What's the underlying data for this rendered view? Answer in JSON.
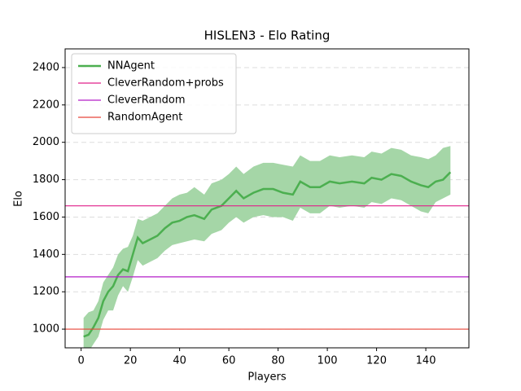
{
  "chart_data": {
    "type": "line",
    "title": "HISLEN3 - Elo Rating",
    "x_label": "Players",
    "y_label": "Elo",
    "xlim": [
      -6.5,
      157.5
    ],
    "ylim": [
      900,
      2500
    ],
    "xticks": [
      0,
      20,
      40,
      60,
      80,
      100,
      120,
      140
    ],
    "yticks": [
      1000,
      1200,
      1400,
      1600,
      1800,
      2000,
      2200,
      2400
    ],
    "grid": true,
    "legend": "upper left",
    "x": [
      1,
      3,
      5,
      7,
      9,
      11,
      13,
      15,
      17,
      19,
      21,
      23,
      25,
      28,
      31,
      34,
      37,
      40,
      43,
      46,
      50,
      53,
      57,
      60,
      63,
      66,
      70,
      74,
      78,
      82,
      86,
      89,
      93,
      97,
      101,
      105,
      110,
      115,
      118,
      122,
      126,
      130,
      134,
      138,
      141,
      144,
      147,
      150
    ],
    "series": [
      {
        "name": "NNAgent",
        "color": "#4caf50",
        "band_color": "#a5d6a7",
        "values": [
          960,
          970,
          1010,
          1060,
          1150,
          1200,
          1230,
          1290,
          1320,
          1310,
          1400,
          1490,
          1460,
          1480,
          1500,
          1540,
          1570,
          1580,
          1600,
          1610,
          1590,
          1640,
          1660,
          1700,
          1740,
          1700,
          1730,
          1750,
          1750,
          1730,
          1720,
          1790,
          1760,
          1760,
          1790,
          1780,
          1790,
          1780,
          1810,
          1800,
          1830,
          1820,
          1790,
          1770,
          1760,
          1790,
          1800,
          1840
        ],
        "lower": [
          880,
          880,
          920,
          960,
          1050,
          1100,
          1100,
          1180,
          1230,
          1200,
          1280,
          1370,
          1340,
          1360,
          1380,
          1420,
          1450,
          1460,
          1470,
          1480,
          1470,
          1510,
          1530,
          1570,
          1600,
          1570,
          1600,
          1610,
          1600,
          1600,
          1580,
          1650,
          1620,
          1620,
          1660,
          1650,
          1660,
          1650,
          1680,
          1670,
          1700,
          1690,
          1660,
          1630,
          1620,
          1680,
          1700,
          1720
        ],
        "upper": [
          1060,
          1090,
          1100,
          1150,
          1250,
          1290,
          1330,
          1400,
          1430,
          1440,
          1500,
          1590,
          1580,
          1600,
          1620,
          1660,
          1700,
          1720,
          1730,
          1760,
          1720,
          1780,
          1800,
          1830,
          1870,
          1830,
          1870,
          1890,
          1890,
          1880,
          1870,
          1930,
          1900,
          1900,
          1930,
          1920,
          1930,
          1920,
          1950,
          1940,
          1970,
          1960,
          1930,
          1920,
          1910,
          1930,
          1970,
          1980
        ]
      }
    ],
    "hlines": [
      {
        "name": "CleverRandom+probs",
        "color": "#e0218a",
        "value": 1660
      },
      {
        "name": "CleverRandom",
        "color": "#b41ec8",
        "value": 1280
      },
      {
        "name": "RandomAgent",
        "color": "#e8463a",
        "value": 1000
      }
    ]
  }
}
